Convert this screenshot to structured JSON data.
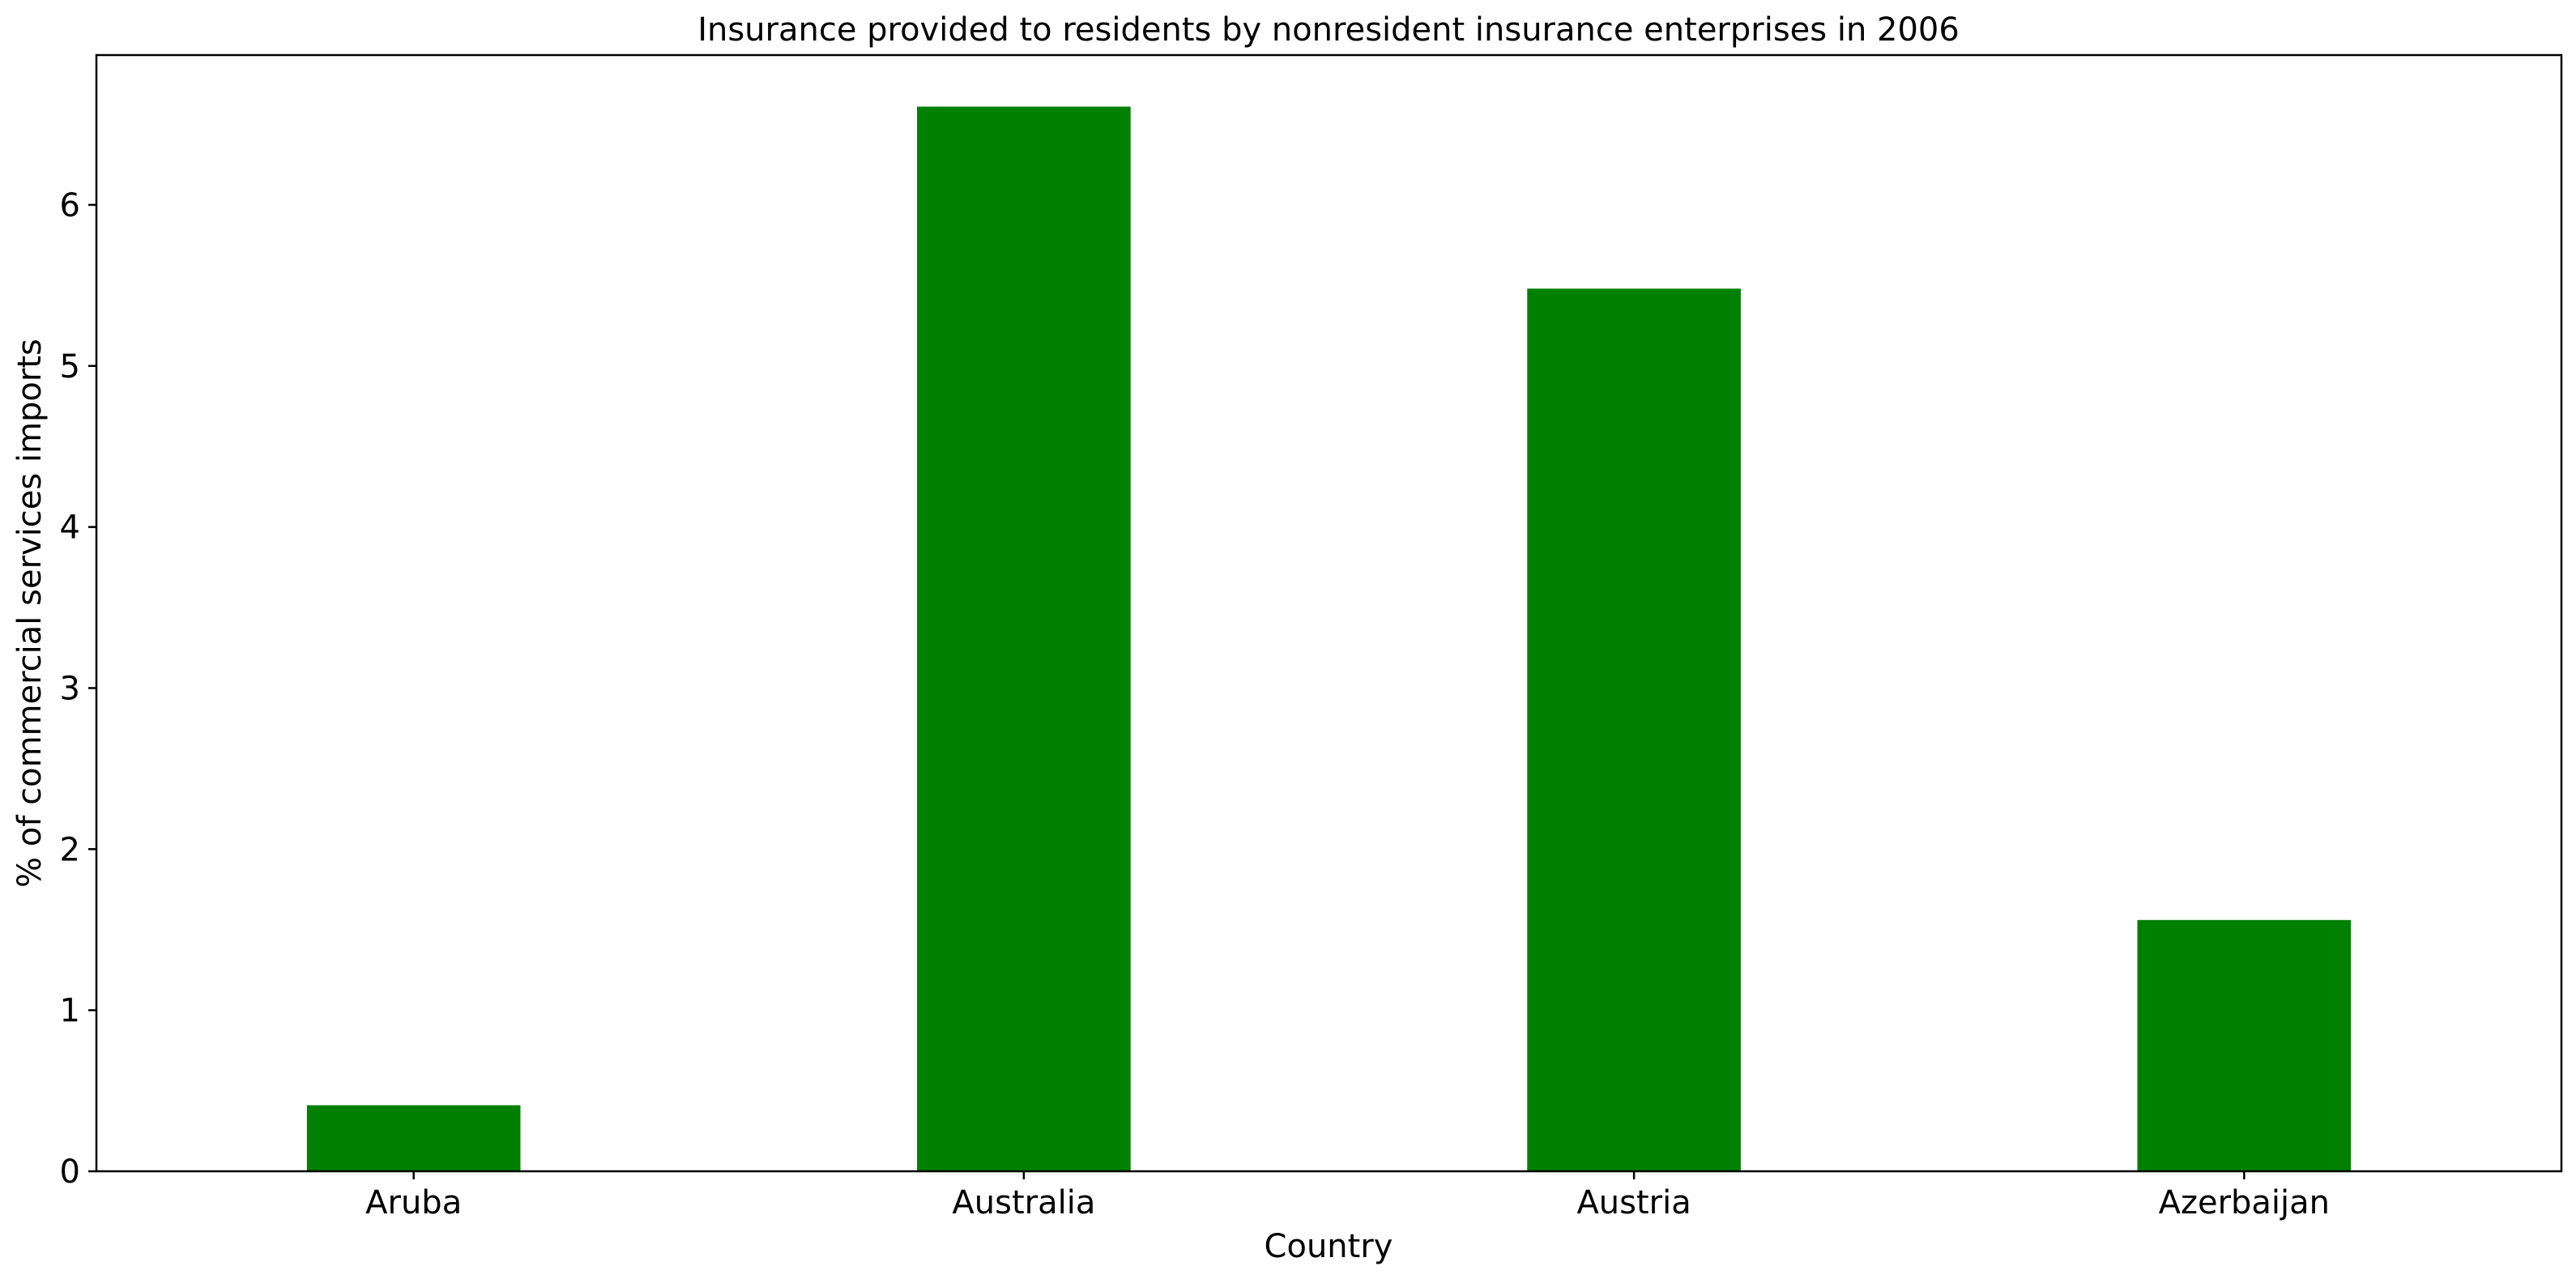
{
  "chart_data": {
    "type": "bar",
    "title": "Insurance provided to residents by nonresident insurance enterprises in 2006",
    "xlabel": "Country",
    "ylabel": "% of commercial services imports",
    "categories": [
      "Aruba",
      "Australia",
      "Austria",
      "Azerbaijan"
    ],
    "values": [
      0.41,
      6.61,
      5.48,
      1.56
    ],
    "ylim": [
      0,
      6.93
    ],
    "yticks": [
      "0",
      "1",
      "2",
      "3",
      "4",
      "5",
      "6"
    ],
    "bar_color": "#008000",
    "grid": false,
    "legend": "none"
  }
}
